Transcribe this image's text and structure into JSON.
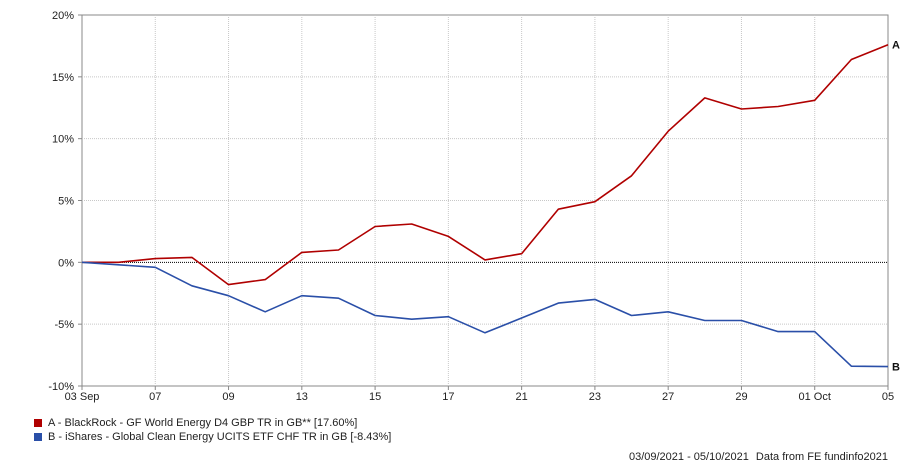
{
  "chart_data": {
    "type": "line",
    "x_ticks": [
      "03 Sep",
      "07",
      "09",
      "13",
      "15",
      "17",
      "21",
      "23",
      "27",
      "29",
      "01 Oct",
      "05"
    ],
    "y_ticks": [
      "20%",
      "15%",
      "10%",
      "5%",
      "0%",
      "-5%",
      "-10%"
    ],
    "ylim": [
      -10,
      20
    ],
    "grid": true,
    "zero_line": "dashed",
    "x": [
      "03 Sep",
      "06 Sep",
      "07 Sep",
      "08 Sep",
      "09 Sep",
      "10 Sep",
      "13 Sep",
      "14 Sep",
      "15 Sep",
      "16 Sep",
      "17 Sep",
      "20 Sep",
      "21 Sep",
      "22 Sep",
      "23 Sep",
      "24 Sep",
      "27 Sep",
      "28 Sep",
      "29 Sep",
      "30 Sep",
      "01 Oct",
      "04 Oct",
      "05 Oct"
    ],
    "series": [
      {
        "name": "A - BlackRock - GF World Energy D4 GBP TR in GB** [17.60%]",
        "end_label": "A",
        "color": "#b00000",
        "values": [
          0.0,
          0.0,
          0.3,
          0.4,
          -1.8,
          -1.4,
          0.8,
          1.0,
          2.9,
          3.1,
          2.1,
          0.2,
          0.7,
          4.3,
          4.9,
          7.0,
          10.6,
          13.3,
          12.4,
          12.6,
          13.1,
          16.4,
          17.6
        ]
      },
      {
        "name": "B - iShares - Global Clean Energy UCITS ETF CHF TR in GB [-8.43%]",
        "end_label": "B",
        "color": "#2a4fa8",
        "values": [
          0.0,
          -0.2,
          -0.4,
          -1.9,
          -2.7,
          -4.0,
          -2.7,
          -2.9,
          -4.3,
          -4.6,
          -4.4,
          -5.7,
          -4.5,
          -3.3,
          -3.0,
          -4.3,
          -4.0,
          -4.7,
          -4.7,
          -5.6,
          -5.6,
          -8.4,
          -8.43
        ]
      }
    ]
  },
  "footer": {
    "date_range": "03/09/2021 - 05/10/2021",
    "source": "Data from FE fundinfo2021"
  }
}
